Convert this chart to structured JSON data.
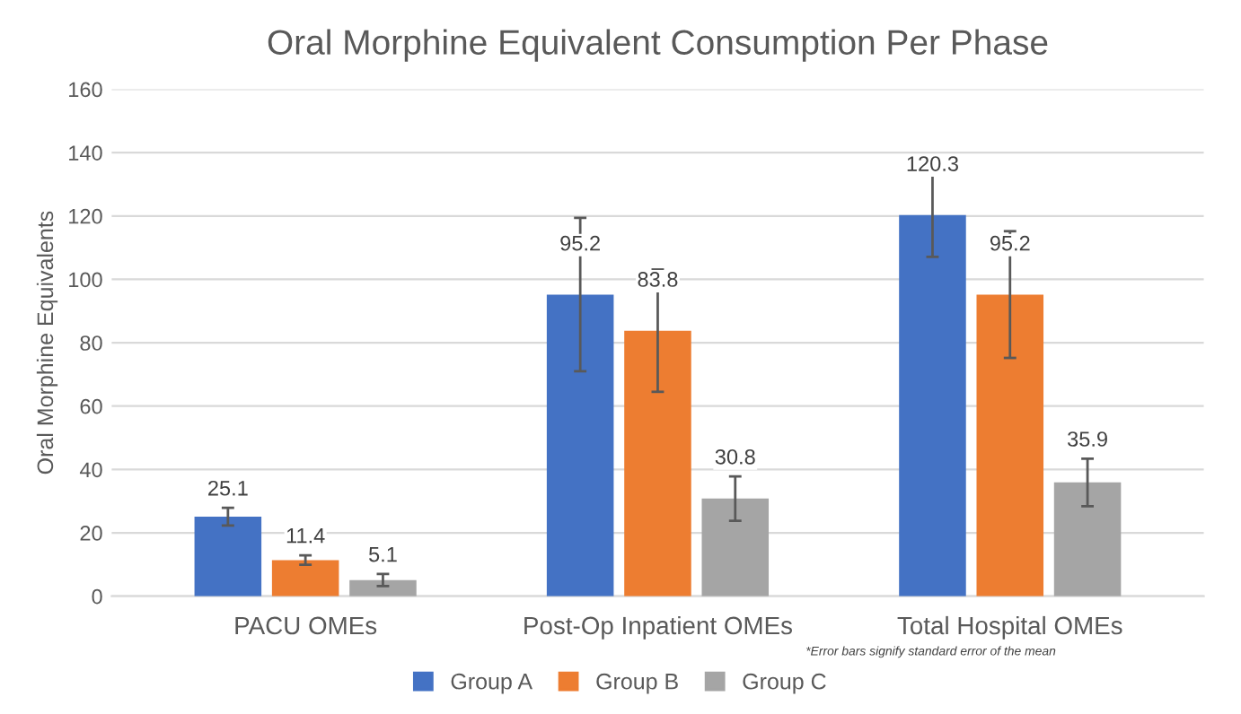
{
  "chart_data": {
    "type": "bar",
    "title": "Oral Morphine Equivalent Consumption Per Phase",
    "ylabel": "Oral Morphine Equivalents",
    "categories": [
      "PACU OMEs",
      "Post-Op Inpatient OMEs",
      "Total Hospital OMEs"
    ],
    "series": [
      {
        "name": "Group A",
        "color": "#4472c4",
        "values": [
          25.1,
          95.2,
          120.3
        ],
        "errors": [
          2.8,
          24.2,
          13.2
        ]
      },
      {
        "name": "Group B",
        "color": "#ed7d31",
        "values": [
          11.4,
          83.8,
          95.2
        ],
        "errors": [
          1.5,
          19.3,
          20
        ]
      },
      {
        "name": "Group C",
        "color": "#a5a5a5",
        "values": [
          5.1,
          30.8,
          35.9
        ],
        "errors": [
          1.9,
          7,
          7.5
        ]
      }
    ],
    "ylim": [
      0,
      160
    ],
    "yticks": [
      0,
      20,
      40,
      60,
      80,
      100,
      120,
      140,
      160
    ],
    "grid": "y",
    "legend": "bottom",
    "data_labels": true,
    "annotations": [
      "*Error bars signify standard error of the mean"
    ]
  }
}
